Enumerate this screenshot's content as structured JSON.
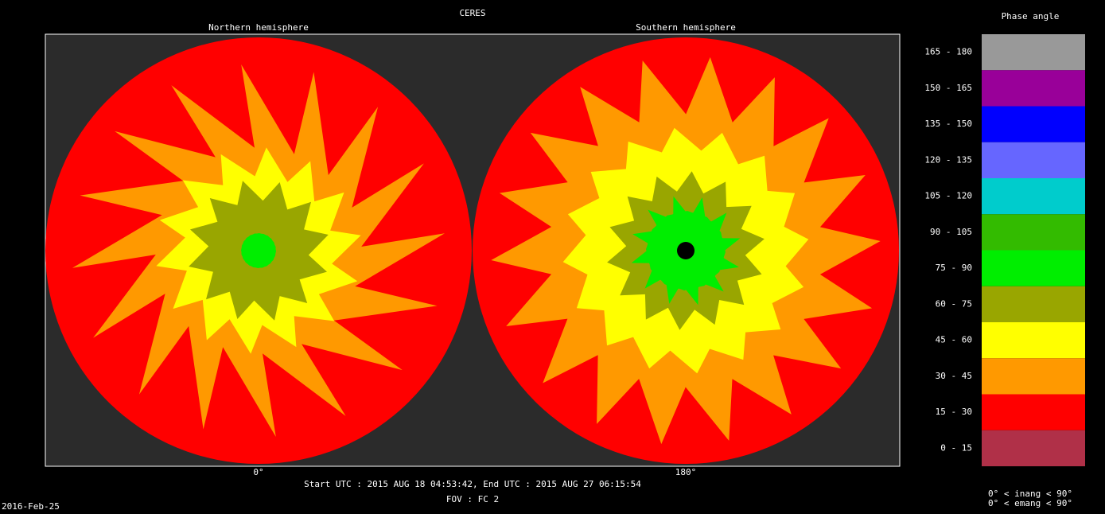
{
  "title": "CERES",
  "panels": [
    {
      "label": "Northern hemisphere",
      "bottom_label": "0°"
    },
    {
      "label": "Southern hemisphere",
      "bottom_label": "180°"
    }
  ],
  "legend": {
    "title": "Phase angle",
    "items": [
      {
        "label": "165 - 180",
        "color": "#999999"
      },
      {
        "label": "150 - 165",
        "color": "#990099"
      },
      {
        "label": "135 - 150",
        "color": "#0000ff"
      },
      {
        "label": "120 - 135",
        "color": "#6666ff"
      },
      {
        "label": "105 - 120",
        "color": "#00cccc"
      },
      {
        "label": "90 - 105",
        "color": "#33bb00"
      },
      {
        "label": "75 -  90",
        "color": "#00ee00"
      },
      {
        "label": "60 -  75",
        "color": "#99a600"
      },
      {
        "label": "45 -  60",
        "color": "#ffff00"
      },
      {
        "label": "30 -  45",
        "color": "#ff9900"
      },
      {
        "label": "15 -  30",
        "color": "#ff0000"
      },
      {
        "label": "0 -  15",
        "color": "#b03048"
      }
    ]
  },
  "time_range": "Start UTC : 2015 AUG 18 04:53:42,   End UTC : 2015 AUG 27 06:15:54",
  "fov": "FOV : FC 2",
  "date": "2016-Feb-25",
  "constraints": [
    "0° < inang < 90°",
    "0° < emang < 90°"
  ]
}
